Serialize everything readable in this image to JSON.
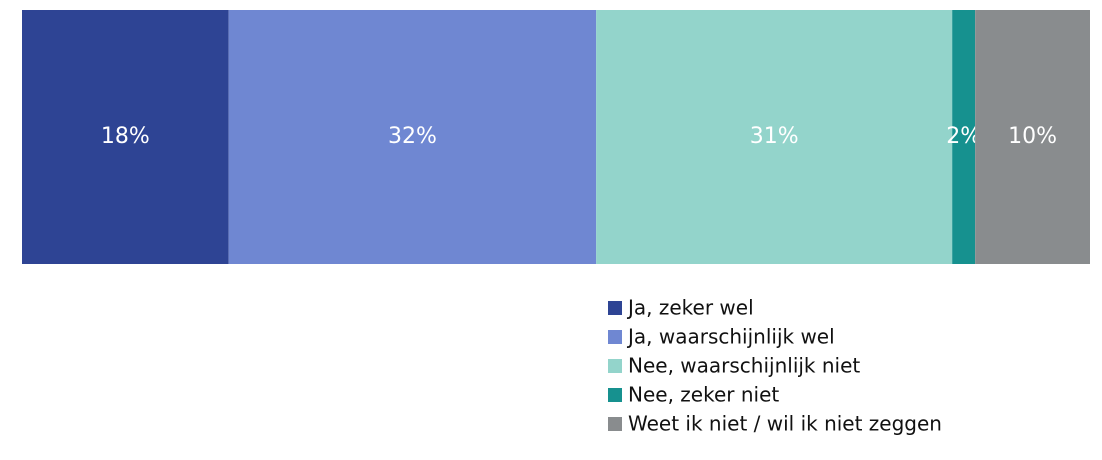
{
  "chart_data": {
    "type": "bar",
    "orientation": "horizontal",
    "stacked": true,
    "series": [
      {
        "name": "Ja, zeker wel",
        "color": "#2e4494",
        "values": [
          18
        ],
        "value_labels": [
          "18%"
        ]
      },
      {
        "name": "Ja, waarschijnlijk wel",
        "color": "#6f87d2",
        "values": [
          32
        ],
        "value_labels": [
          "32%"
        ]
      },
      {
        "name": "Nee, waarschijnlijk niet",
        "color": "#93d4cb",
        "values": [
          31
        ],
        "value_labels": [
          "31%"
        ]
      },
      {
        "name": "Nee, zeker niet",
        "color": "#16918f",
        "values": [
          2
        ],
        "value_labels": [
          "2%"
        ]
      },
      {
        "name": "Weet ik niet / wil ik niet zeggen",
        "color": "#898c8e",
        "values": [
          10
        ],
        "value_labels": [
          "10%"
        ]
      }
    ],
    "legend": "bottom-right"
  }
}
